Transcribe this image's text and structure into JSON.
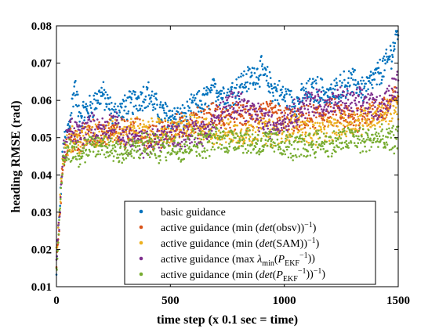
{
  "chart_data": {
    "type": "scatter",
    "xlabel": "time step (x 0.1 sec = time)",
    "ylabel": "heading RMSE (rad)",
    "xlim": [
      0,
      1500
    ],
    "ylim": [
      0.01,
      0.08
    ],
    "x_ticks": [
      0,
      500,
      1000,
      1500
    ],
    "y_ticks": [
      0.01,
      0.02,
      0.03,
      0.04,
      0.05,
      0.06,
      0.07,
      0.08
    ],
    "grid": false,
    "legend_position": "bottom-right",
    "series": [
      {
        "name": "basic guidance",
        "color": "#0072BD",
        "name_parts": [
          {
            "t": "basic guidance",
            "f": "n"
          }
        ],
        "points": [
          [
            0,
            0.013
          ],
          [
            5,
            0.022
          ],
          [
            10,
            0.026
          ],
          [
            30,
            0.047
          ],
          [
            60,
            0.055
          ],
          [
            80,
            0.064
          ],
          [
            100,
            0.056
          ],
          [
            150,
            0.058
          ],
          [
            200,
            0.062
          ],
          [
            250,
            0.056
          ],
          [
            300,
            0.058
          ],
          [
            350,
            0.06
          ],
          [
            400,
            0.062
          ],
          [
            450,
            0.057
          ],
          [
            500,
            0.056
          ],
          [
            550,
            0.055
          ],
          [
            600,
            0.058
          ],
          [
            650,
            0.06
          ],
          [
            700,
            0.063
          ],
          [
            750,
            0.061
          ],
          [
            800,
            0.064
          ],
          [
            850,
            0.066
          ],
          [
            900,
            0.068
          ],
          [
            950,
            0.063
          ],
          [
            1000,
            0.061
          ],
          [
            1050,
            0.059
          ],
          [
            1100,
            0.062
          ],
          [
            1150,
            0.063
          ],
          [
            1200,
            0.061
          ],
          [
            1250,
            0.064
          ],
          [
            1300,
            0.065
          ],
          [
            1350,
            0.063
          ],
          [
            1400,
            0.066
          ],
          [
            1450,
            0.07
          ],
          [
            1480,
            0.074
          ],
          [
            1500,
            0.079
          ]
        ]
      },
      {
        "name": "active guidance (min (det(obsv))^-1)",
        "color": "#D95319",
        "name_parts": [
          {
            "t": "active guidance (min (",
            "f": "n"
          },
          {
            "t": "det",
            "f": "i"
          },
          {
            "t": "(obsv))",
            "f": "n"
          },
          {
            "t": "−1",
            "f": "sup"
          },
          {
            "t": ")",
            "f": "n"
          }
        ],
        "points": [
          [
            0,
            0.016
          ],
          [
            10,
            0.025
          ],
          [
            30,
            0.045
          ],
          [
            60,
            0.05
          ],
          [
            100,
            0.048
          ],
          [
            150,
            0.052
          ],
          [
            200,
            0.05
          ],
          [
            250,
            0.053
          ],
          [
            300,
            0.051
          ],
          [
            350,
            0.052
          ],
          [
            400,
            0.05
          ],
          [
            450,
            0.051
          ],
          [
            500,
            0.052
          ],
          [
            550,
            0.053
          ],
          [
            600,
            0.054
          ],
          [
            650,
            0.055
          ],
          [
            700,
            0.056
          ],
          [
            750,
            0.055
          ],
          [
            800,
            0.056
          ],
          [
            850,
            0.055
          ],
          [
            900,
            0.057
          ],
          [
            950,
            0.056
          ],
          [
            1000,
            0.055
          ],
          [
            1050,
            0.054
          ],
          [
            1100,
            0.055
          ],
          [
            1150,
            0.056
          ],
          [
            1200,
            0.057
          ],
          [
            1250,
            0.056
          ],
          [
            1300,
            0.055
          ],
          [
            1350,
            0.056
          ],
          [
            1400,
            0.057
          ],
          [
            1450,
            0.058
          ],
          [
            1500,
            0.062
          ]
        ]
      },
      {
        "name": "active guidance (min (det(SAM))^-1)",
        "color": "#EDB120",
        "name_parts": [
          {
            "t": "active guidance (min (",
            "f": "n"
          },
          {
            "t": "det",
            "f": "i"
          },
          {
            "t": "(SAM))",
            "f": "n"
          },
          {
            "t": "−1",
            "f": "sup"
          },
          {
            "t": ")",
            "f": "n"
          }
        ],
        "points": [
          [
            0,
            0.018
          ],
          [
            10,
            0.027
          ],
          [
            30,
            0.046
          ],
          [
            60,
            0.05
          ],
          [
            100,
            0.049
          ],
          [
            150,
            0.051
          ],
          [
            200,
            0.05
          ],
          [
            250,
            0.052
          ],
          [
            300,
            0.051
          ],
          [
            350,
            0.052
          ],
          [
            400,
            0.051
          ],
          [
            450,
            0.052
          ],
          [
            500,
            0.051
          ],
          [
            550,
            0.052
          ],
          [
            600,
            0.053
          ],
          [
            650,
            0.052
          ],
          [
            700,
            0.051
          ],
          [
            750,
            0.052
          ],
          [
            800,
            0.051
          ],
          [
            850,
            0.052
          ],
          [
            900,
            0.052
          ],
          [
            950,
            0.051
          ],
          [
            1000,
            0.052
          ],
          [
            1050,
            0.053
          ],
          [
            1100,
            0.052
          ],
          [
            1150,
            0.051
          ],
          [
            1200,
            0.052
          ],
          [
            1250,
            0.053
          ],
          [
            1300,
            0.054
          ],
          [
            1350,
            0.055
          ],
          [
            1400,
            0.056
          ],
          [
            1450,
            0.057
          ],
          [
            1500,
            0.058
          ]
        ]
      },
      {
        "name": "active guidance (max λmin(P_EKF^-1))",
        "color": "#7E2F8E",
        "name_parts": [
          {
            "t": "active guidance (max ",
            "f": "n"
          },
          {
            "t": "λ",
            "f": "i"
          },
          {
            "t": "min",
            "f": "sub"
          },
          {
            "t": "(",
            "f": "n"
          },
          {
            "t": "P",
            "f": "i"
          },
          {
            "t": "EKF",
            "f": "sub"
          },
          {
            "t": "−1",
            "f": "sup"
          },
          {
            "t": "))",
            "f": "n"
          }
        ],
        "points": [
          [
            0,
            0.017
          ],
          [
            10,
            0.026
          ],
          [
            30,
            0.046
          ],
          [
            60,
            0.052
          ],
          [
            100,
            0.051
          ],
          [
            150,
            0.053
          ],
          [
            200,
            0.052
          ],
          [
            250,
            0.054
          ],
          [
            300,
            0.05
          ],
          [
            350,
            0.049
          ],
          [
            400,
            0.048
          ],
          [
            450,
            0.05
          ],
          [
            500,
            0.051
          ],
          [
            550,
            0.05
          ],
          [
            600,
            0.052
          ],
          [
            650,
            0.051
          ],
          [
            700,
            0.055
          ],
          [
            750,
            0.058
          ],
          [
            800,
            0.06
          ],
          [
            850,
            0.057
          ],
          [
            900,
            0.055
          ],
          [
            950,
            0.053
          ],
          [
            1000,
            0.055
          ],
          [
            1050,
            0.057
          ],
          [
            1100,
            0.059
          ],
          [
            1150,
            0.06
          ],
          [
            1200,
            0.058
          ],
          [
            1250,
            0.06
          ],
          [
            1300,
            0.059
          ],
          [
            1350,
            0.06
          ],
          [
            1400,
            0.058
          ],
          [
            1450,
            0.06
          ],
          [
            1500,
            0.066
          ]
        ]
      },
      {
        "name": "active guidance (min (det(P_EKF^-1))^-1)",
        "color": "#77AC30",
        "name_parts": [
          {
            "t": "active guidance (min (",
            "f": "n"
          },
          {
            "t": "det",
            "f": "i"
          },
          {
            "t": "(",
            "f": "n"
          },
          {
            "t": "P",
            "f": "i"
          },
          {
            "t": "EKF",
            "f": "sub"
          },
          {
            "t": "−1",
            "f": "sup"
          },
          {
            "t": "))",
            "f": "n"
          },
          {
            "t": "−1",
            "f": "sup"
          },
          {
            "t": ")",
            "f": "n"
          }
        ],
        "points": [
          [
            0,
            0.015
          ],
          [
            10,
            0.024
          ],
          [
            30,
            0.045
          ],
          [
            60,
            0.047
          ],
          [
            100,
            0.046
          ],
          [
            150,
            0.047
          ],
          [
            200,
            0.048
          ],
          [
            250,
            0.047
          ],
          [
            300,
            0.046
          ],
          [
            350,
            0.047
          ],
          [
            400,
            0.048
          ],
          [
            450,
            0.047
          ],
          [
            500,
            0.048
          ],
          [
            550,
            0.047
          ],
          [
            600,
            0.049
          ],
          [
            650,
            0.048
          ],
          [
            700,
            0.05
          ],
          [
            750,
            0.049
          ],
          [
            800,
            0.05
          ],
          [
            850,
            0.049
          ],
          [
            900,
            0.048
          ],
          [
            950,
            0.049
          ],
          [
            1000,
            0.048
          ],
          [
            1050,
            0.047
          ],
          [
            1100,
            0.048
          ],
          [
            1150,
            0.049
          ],
          [
            1200,
            0.048
          ],
          [
            1250,
            0.049
          ],
          [
            1300,
            0.05
          ],
          [
            1350,
            0.049
          ],
          [
            1400,
            0.05
          ],
          [
            1450,
            0.049
          ],
          [
            1500,
            0.05
          ]
        ]
      }
    ]
  }
}
